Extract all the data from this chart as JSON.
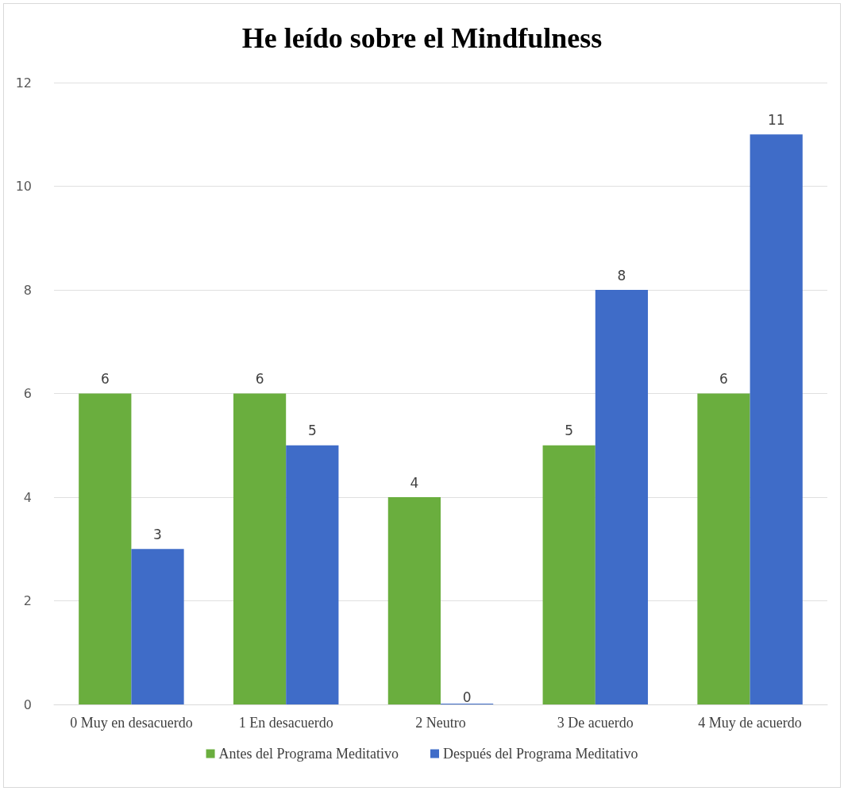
{
  "chart_data": {
    "type": "bar",
    "title": "He leído sobre el Mindfulness",
    "categories": [
      "0 Muy en desacuerdo",
      "1 En desacuerdo",
      "2 Neutro",
      "3 De acuerdo",
      "4 Muy de acuerdo"
    ],
    "series": [
      {
        "name": "Antes del Programa Meditativo",
        "color": "#6aae3e",
        "values": [
          6,
          6,
          4,
          5,
          6
        ]
      },
      {
        "name": "Después del Programa Meditativo",
        "color": "#3f6cc8",
        "values": [
          3,
          5,
          0,
          8,
          11
        ]
      }
    ],
    "ylim": [
      0,
      12
    ],
    "yticks": [
      0,
      2,
      4,
      6,
      8,
      10,
      12
    ],
    "grid": "y",
    "legend": "bottom",
    "data_labels": true
  }
}
